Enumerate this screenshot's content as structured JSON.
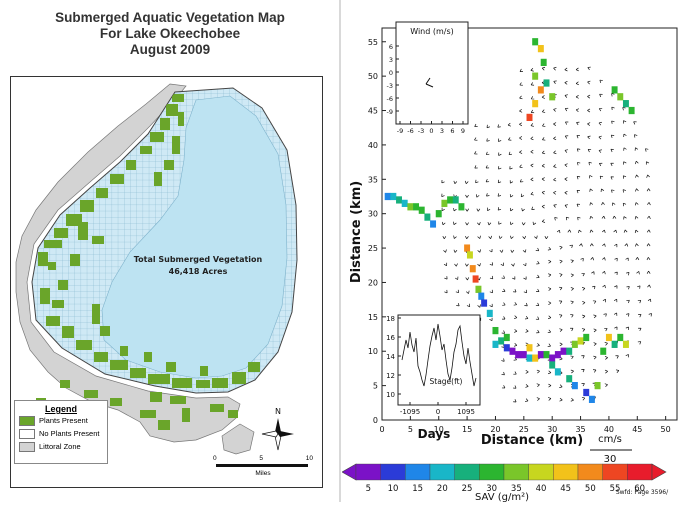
{
  "left_map": {
    "title_lines": [
      "Submerged Aquatic Vegetation Map",
      "For Lake Okeechobee",
      "August 2009"
    ],
    "lake_label_lines": [
      "Total Submerged Vegetation",
      "46,418 Acres"
    ],
    "legend": {
      "title": "Legend",
      "items": [
        {
          "label": "Plants Present",
          "color": "#6aa52a"
        },
        {
          "label": "No Plants Present",
          "color": "#ffffff"
        },
        {
          "label": "Littoral Zone",
          "color": "#d3d3d3"
        }
      ]
    },
    "north_label": "N",
    "scale": {
      "ticks": [
        "0",
        "5",
        "10"
      ],
      "unit": "Miles"
    },
    "colors": {
      "lake": "#bde3f2",
      "plants": "#6aa52a",
      "littoral": "#d3d3d3",
      "grid_cell": "#9bc8dc"
    }
  },
  "right_map": {
    "xlabel": "Distance (km)",
    "ylabel": "Distance (km)",
    "x_ticks": [
      "0",
      "5",
      "10",
      "15",
      "20",
      "25",
      "30",
      "35",
      "40",
      "45",
      "50"
    ],
    "y_ticks": [
      "0",
      "5",
      "10",
      "15",
      "20",
      "25",
      "30",
      "35",
      "40",
      "45",
      "50",
      "55"
    ],
    "wind_inset": {
      "title": "Wind (m/s)",
      "x_ticks": [
        "-9",
        "-6",
        "-3",
        "0",
        "3",
        "6",
        "9"
      ],
      "y_ticks": [
        "6",
        "3",
        "0",
        "-3",
        "-6",
        "-9"
      ]
    },
    "stage_inset": {
      "ylabel": "Stage(ft)",
      "y_ticks": [
        "18",
        "16",
        "14",
        "12",
        "10"
      ],
      "x_ticks": [
        "-1095",
        "0",
        "1095"
      ],
      "xlabel": "Days"
    },
    "current_scale": {
      "unit": "cm/s",
      "value": "30"
    },
    "colorbar": {
      "ticks": [
        "5",
        "10",
        "15",
        "20",
        "25",
        "30",
        "35",
        "40",
        "45",
        "50",
        "55",
        "60"
      ],
      "label": "SAV (g/m²)",
      "colors": [
        "#7b12c7",
        "#2b3bd8",
        "#1f86e8",
        "#19b6c8",
        "#17b07c",
        "#2cb530",
        "#7ac62a",
        "#c7d61f",
        "#f2c21a",
        "#f28a1c",
        "#ee4622",
        "#e81c2c"
      ]
    },
    "credit": "Swfd: Page 3596/"
  }
}
